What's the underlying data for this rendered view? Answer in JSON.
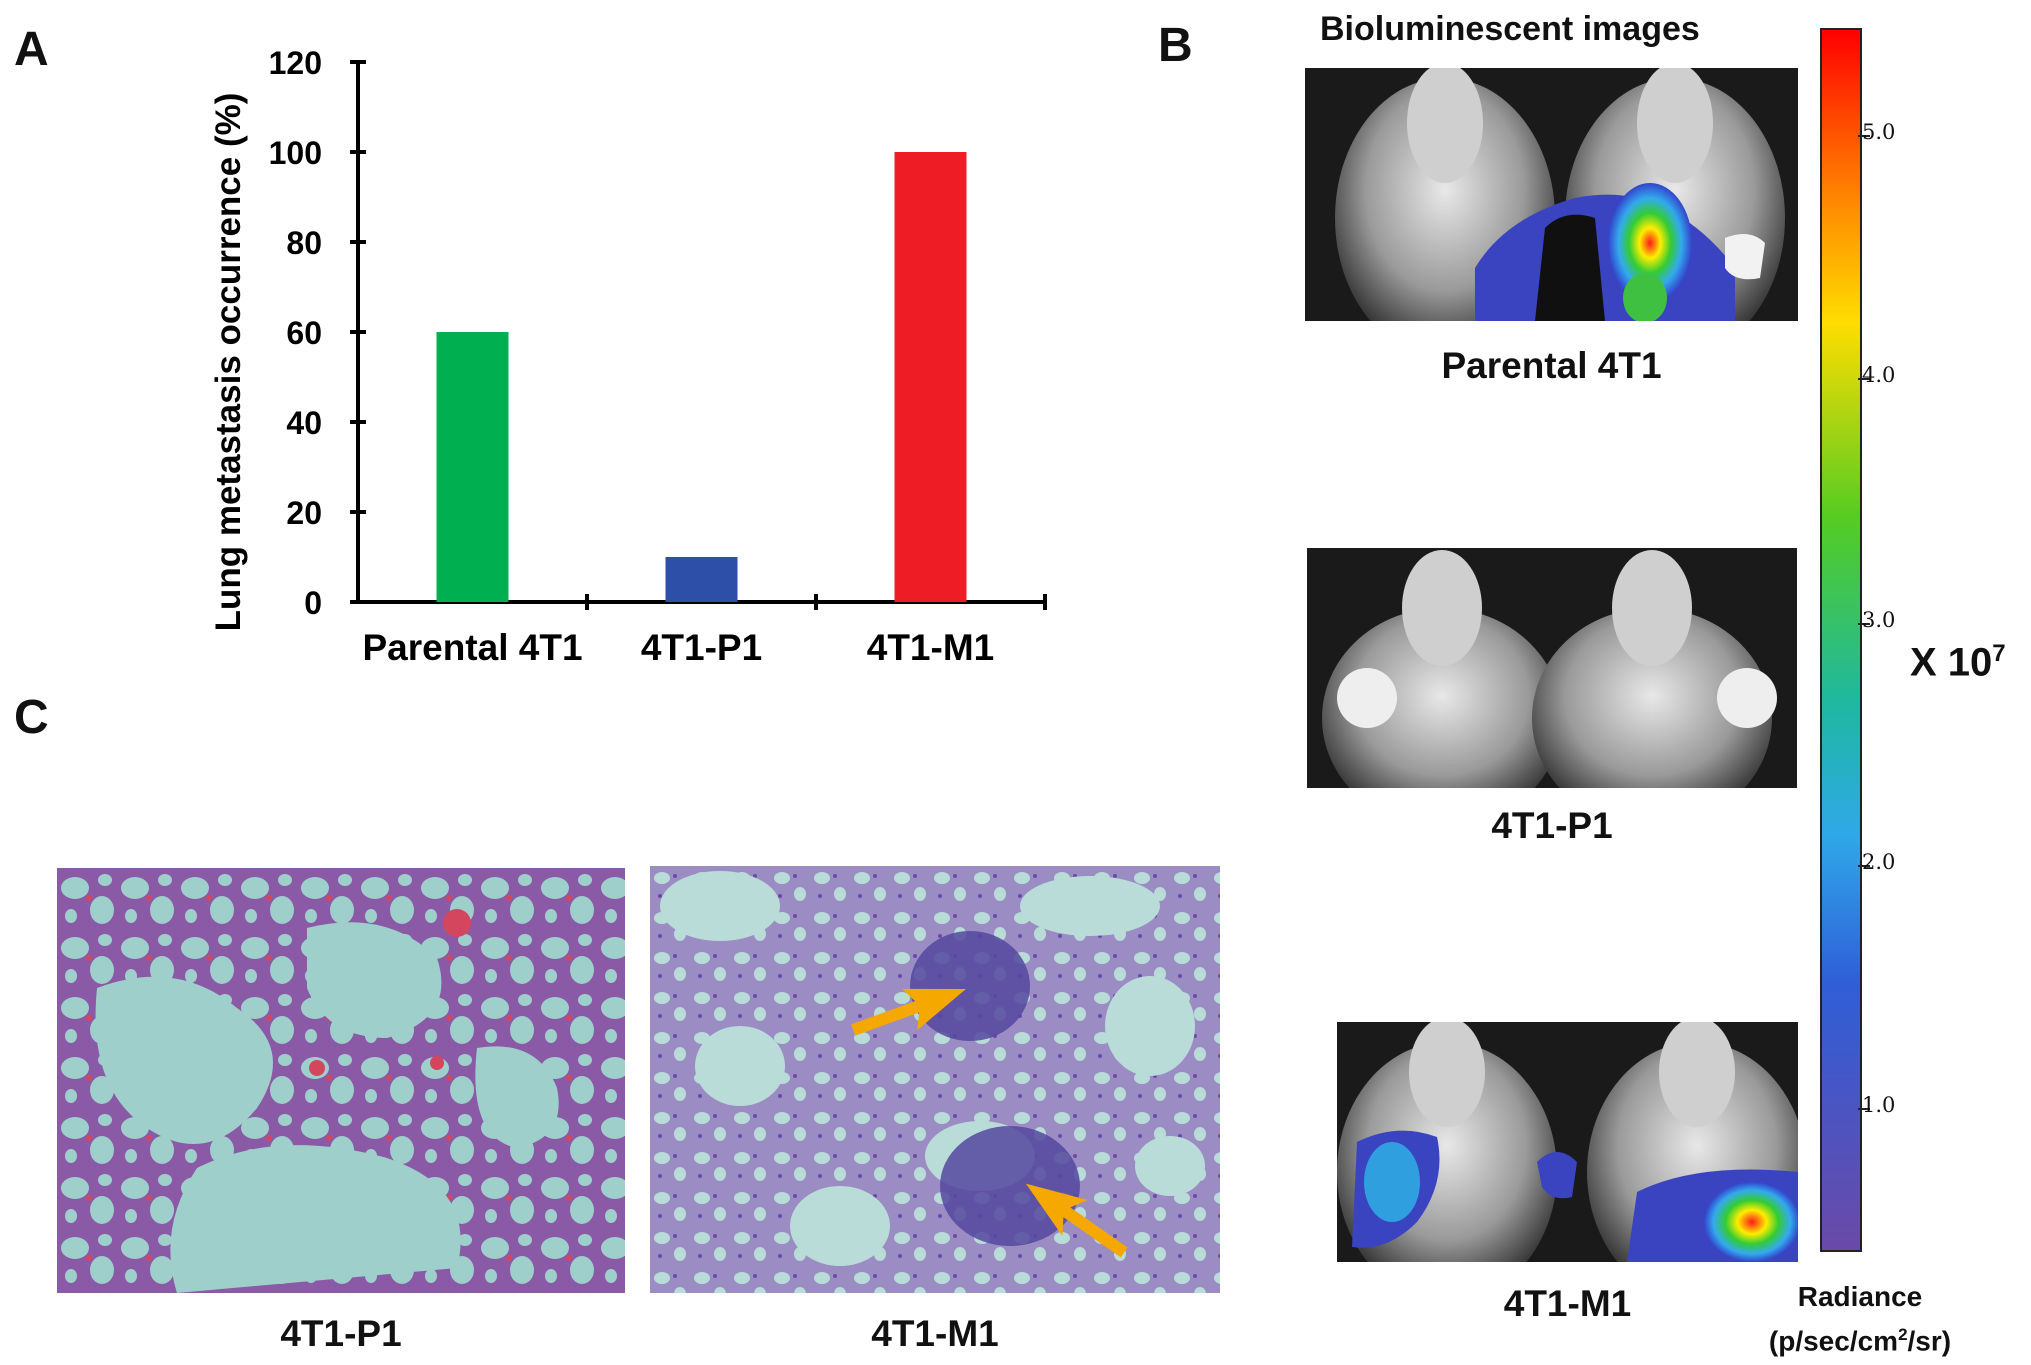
{
  "panels": {
    "a": "A",
    "b": "B",
    "c": "C"
  },
  "chart_data": {
    "type": "bar",
    "title": "",
    "xlabel": "",
    "ylabel": "Lung metastasis occurrence (%)",
    "categories": [
      "Parental 4T1",
      "4T1-P1",
      "4T1-M1"
    ],
    "values": [
      60,
      10,
      100
    ],
    "colors": [
      "#00b050",
      "#2e4fa8",
      "#ee1c25"
    ],
    "ylim": [
      0,
      120
    ],
    "yticks": [
      0,
      20,
      40,
      60,
      80,
      100,
      120
    ],
    "grid": false,
    "legend": "none"
  },
  "panel_b": {
    "title": "Bioluminescent images",
    "captions": [
      "Parental 4T1",
      "4T1-P1",
      "4T1-M1"
    ],
    "colorbar": {
      "ticks": [
        "5.0",
        "4.0",
        "3.0",
        "2.0",
        "1.0"
      ],
      "multiplier_base": "X 10",
      "multiplier_exp": "7",
      "label_line1": "Radiance",
      "label_line2_pre": "(p/sec/cm",
      "label_line2_sup": "2",
      "label_line2_post": "/sr)"
    }
  },
  "panel_c": {
    "captions": [
      "4T1-P1",
      "4T1-M1"
    ],
    "arrow_color": "#f5a800"
  }
}
